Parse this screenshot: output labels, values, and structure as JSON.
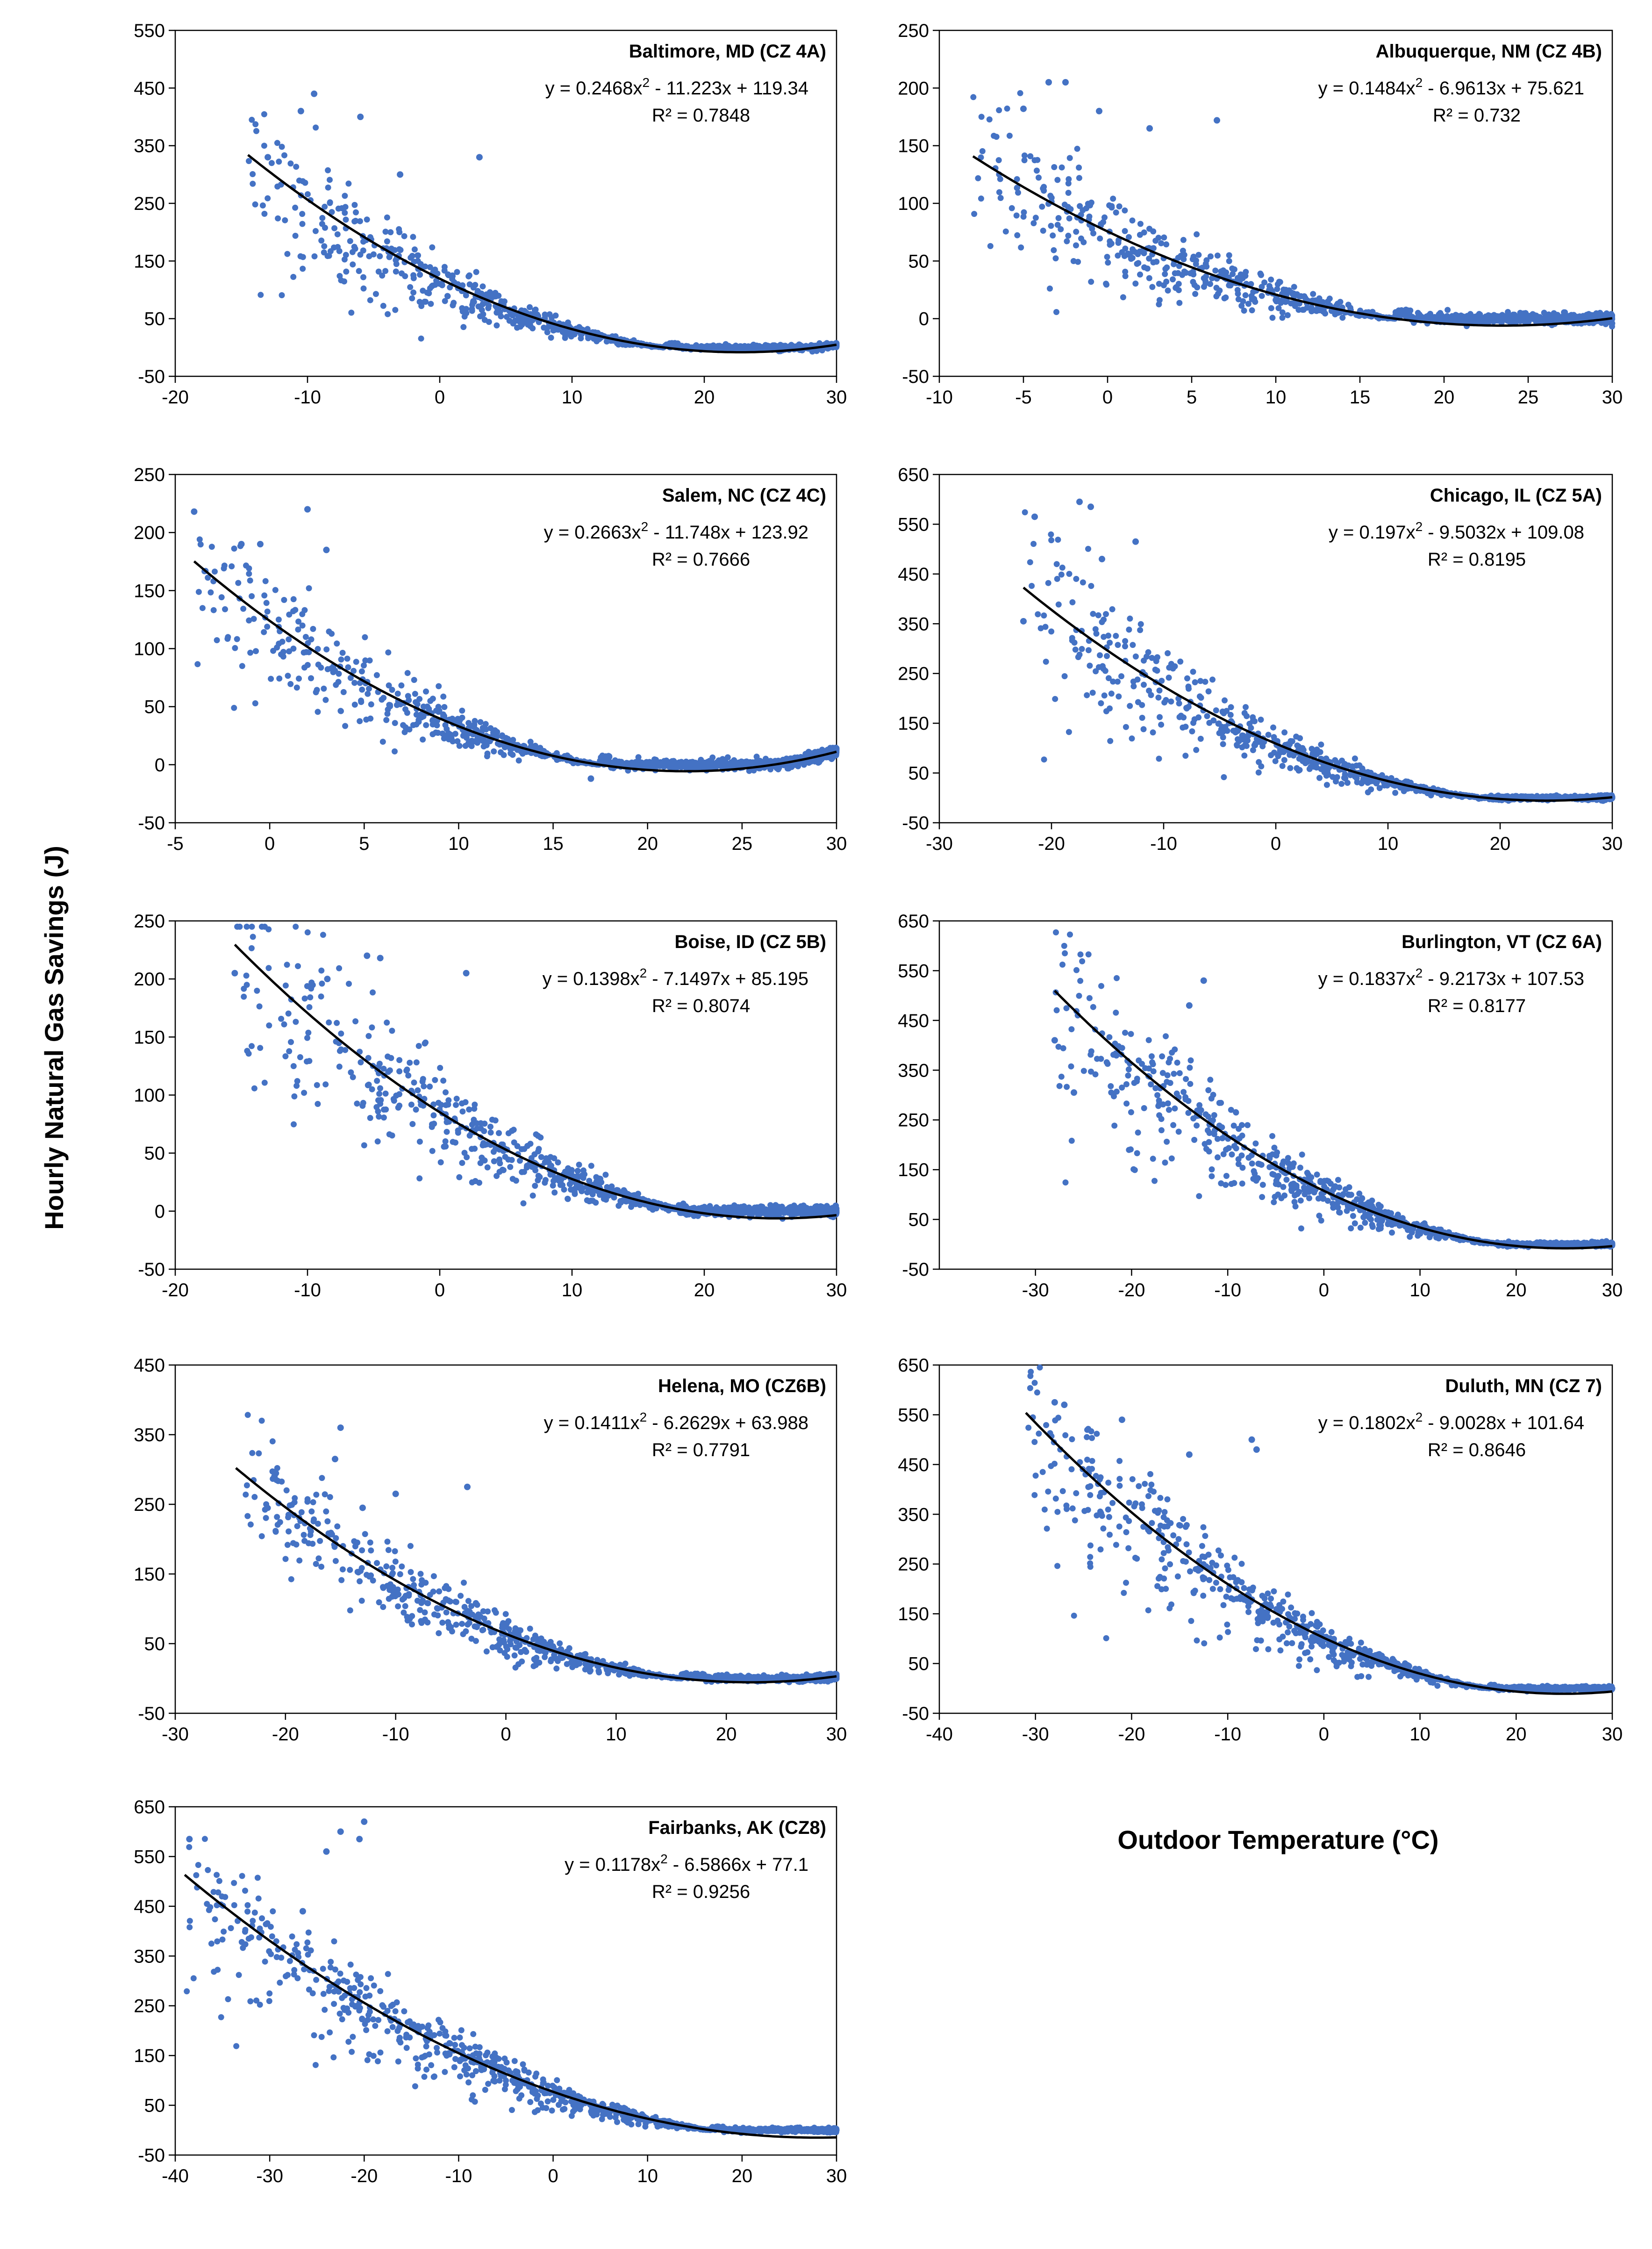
{
  "y_axis_label": "Hourly Natural Gas Savings (J)",
  "x_axis_label": "Outdoor Temperature (°C)",
  "colors": {
    "points": "#4472c4",
    "fit": "#000000",
    "axis": "#000000",
    "background": "#ffffff"
  },
  "chart_data": [
    {
      "type": "scatter",
      "title": "Baltimore, MD (CZ 4A)",
      "equation": {
        "a": "0.2468",
        "b": "11.223",
        "c": "119.34"
      },
      "fit": [
        0.2468,
        -11.223,
        119.34
      ],
      "r2_text": "R² = 0.7848",
      "xlim": [
        -20,
        30
      ],
      "xticks": [
        -20,
        -10,
        0,
        10,
        20,
        30
      ],
      "ylim": [
        -50,
        550
      ],
      "yticks": [
        -50,
        50,
        150,
        250,
        350,
        450,
        550
      ],
      "data_xrange": [
        -14.5,
        30
      ],
      "spread_cold": 0.55,
      "spread_warm": 0.25,
      "n_points": 1100,
      "outliers": [
        [
          -9.5,
          440
        ],
        [
          -10.5,
          410
        ],
        [
          -6,
          400
        ],
        [
          -13,
          330
        ],
        [
          3,
          330
        ],
        [
          -3,
          300
        ]
      ]
    },
    {
      "type": "scatter",
      "title": "Albuquerque, NM (CZ 4B)",
      "equation": {
        "a": "0.1484",
        "b": "6.9613",
        "c": "75.621"
      },
      "fit": [
        0.1484,
        -6.9613,
        75.621
      ],
      "r2_text": "R² = 0.732",
      "xlim": [
        -10,
        30
      ],
      "xticks": [
        -10,
        -5,
        0,
        5,
        10,
        15,
        20,
        25,
        30
      ],
      "ylim": [
        -50,
        250
      ],
      "yticks": [
        -50,
        0,
        50,
        100,
        150,
        200,
        250
      ],
      "data_xrange": [
        -8,
        30
      ],
      "spread_cold": 0.55,
      "spread_warm": 0.85,
      "n_points": 1100,
      "outliers": [
        [
          -3.5,
          205
        ],
        [
          -2.5,
          205
        ],
        [
          -5,
          182
        ],
        [
          -0.5,
          180
        ],
        [
          6.5,
          172
        ],
        [
          2.5,
          165
        ]
      ]
    },
    {
      "type": "scatter",
      "title": "Salem, NC (CZ 4C)",
      "equation": {
        "a": "0.2663",
        "b": "11.748",
        "c": "123.92"
      },
      "fit": [
        0.2663,
        -11.748,
        123.92
      ],
      "r2_text": "R² = 0.7666",
      "xlim": [
        -5,
        30
      ],
      "xticks": [
        -5,
        0,
        5,
        10,
        15,
        20,
        25,
        30
      ],
      "ylim": [
        -50,
        250
      ],
      "yticks": [
        -50,
        0,
        50,
        100,
        150,
        200,
        250
      ],
      "data_xrange": [
        -4,
        30
      ],
      "spread_cold": 0.45,
      "spread_warm": 0.5,
      "n_points": 1100,
      "outliers": [
        [
          -4,
          218
        ],
        [
          2,
          220
        ],
        [
          -1.5,
          190
        ],
        [
          -0.5,
          190
        ],
        [
          3,
          185
        ],
        [
          17,
          -12
        ]
      ]
    },
    {
      "type": "scatter",
      "title": "Chicago, IL (CZ 5A)",
      "equation": {
        "a": "0.197",
        "b": "9.5032",
        "c": "109.08"
      },
      "fit": [
        0.197,
        -9.5032,
        109.08
      ],
      "r2_text": "R² = 0.8195",
      "xlim": [
        -30,
        30
      ],
      "xticks": [
        -30,
        -20,
        -10,
        0,
        10,
        20,
        30
      ],
      "ylim": [
        -50,
        650
      ],
      "yticks": [
        -50,
        50,
        150,
        250,
        350,
        450,
        550,
        650
      ],
      "data_xrange": [
        -22.5,
        30
      ],
      "spread_cold": 0.5,
      "spread_warm": 0.3,
      "n_points": 1100,
      "outliers": [
        [
          -17.5,
          595
        ],
        [
          -16.5,
          585
        ],
        [
          -21.5,
          565
        ],
        [
          -12.5,
          515
        ],
        [
          -15.5,
          480
        ],
        [
          -22.5,
          355
        ]
      ]
    },
    {
      "type": "scatter",
      "title": "Boise, ID (CZ 5B)",
      "equation": {
        "a": "0.1398",
        "b": "7.1497",
        "c": "85.195"
      },
      "fit": [
        0.1398,
        -7.1497,
        85.195
      ],
      "r2_text": "R² = 0.8074",
      "xlim": [
        -20,
        30
      ],
      "xticks": [
        -20,
        -10,
        0,
        10,
        20,
        30
      ],
      "ylim": [
        -50,
        250
      ],
      "yticks": [
        -50,
        0,
        50,
        100,
        150,
        200,
        250
      ],
      "data_xrange": [
        -15.5,
        30
      ],
      "spread_cold": 0.45,
      "spread_warm": 0.55,
      "n_points": 1100,
      "outliers": [
        [
          -15.5,
          205
        ],
        [
          -5.5,
          220
        ],
        [
          -4.5,
          218
        ],
        [
          2,
          205
        ],
        [
          -8.5,
          200
        ]
      ]
    },
    {
      "type": "scatter",
      "title": "Burlington, VT (CZ 6A)",
      "equation": {
        "a": "0.1837",
        "b": "9.2173",
        "c": "107.53"
      },
      "fit": [
        0.1837,
        -9.2173,
        107.53
      ],
      "r2_text": "R² = 0.8177",
      "xlim": [
        -40,
        30
      ],
      "xticks": [
        -30,
        -20,
        -10,
        0,
        10,
        20,
        30
      ],
      "ylim": [
        -50,
        650
      ],
      "yticks": [
        -50,
        50,
        150,
        250,
        350,
        450,
        550,
        650
      ],
      "data_xrange": [
        -28,
        30
      ],
      "spread_cold": 0.45,
      "spread_warm": 0.3,
      "n_points": 1100,
      "outliers": [
        [
          -12.5,
          530
        ],
        [
          -28,
          410
        ],
        [
          -26,
          305
        ],
        [
          -14,
          480
        ]
      ]
    },
    {
      "type": "scatter",
      "title": "Helena, MO (CZ6B)",
      "equation": {
        "a": "0.1411",
        "b": "6.2629",
        "c": "63.988"
      },
      "fit": [
        0.1411,
        -6.2629,
        63.988
      ],
      "r2_text": "R² = 0.7791",
      "xlim": [
        -30,
        30
      ],
      "xticks": [
        -30,
        -20,
        -10,
        0,
        10,
        20,
        30
      ],
      "ylim": [
        -50,
        450
      ],
      "yticks": [
        -50,
        50,
        150,
        250,
        350,
        450
      ],
      "data_xrange": [
        -24.5,
        30
      ],
      "spread_cold": 0.35,
      "spread_warm": 0.45,
      "n_points": 1100,
      "outliers": [
        [
          -15,
          360
        ],
        [
          -15.5,
          315
        ],
        [
          -3.5,
          275
        ],
        [
          -10,
          265
        ],
        [
          -13,
          245
        ],
        [
          -21,
          290
        ]
      ]
    },
    {
      "type": "scatter",
      "title": "Duluth, MN (CZ 7)",
      "equation": {
        "a": "0.1802",
        "b": "9.0028",
        "c": "101.64"
      },
      "fit": [
        0.1802,
        -9.0028,
        101.64
      ],
      "r2_text": "R² = 0.8646",
      "xlim": [
        -40,
        30
      ],
      "xticks": [
        -40,
        -30,
        -20,
        -10,
        0,
        10,
        20,
        30
      ],
      "ylim": [
        -50,
        650
      ],
      "yticks": [
        -50,
        50,
        150,
        250,
        350,
        450,
        550,
        650
      ],
      "data_xrange": [
        -31,
        30
      ],
      "spread_cold": 0.35,
      "spread_warm": 0.3,
      "n_points": 1100,
      "outliers": [
        [
          -28,
          575
        ],
        [
          -27,
          570
        ],
        [
          -21,
          540
        ],
        [
          -7.5,
          500
        ],
        [
          -14,
          470
        ],
        [
          -7,
          480
        ]
      ]
    },
    {
      "type": "scatter",
      "title": "Fairbanks, AK (CZ8)",
      "equation": {
        "a": "0.1178",
        "b": "6.5866",
        "c": "77.1"
      },
      "fit": [
        0.1178,
        -6.5866,
        77.1
      ],
      "r2_text": "R² = 0.9256",
      "xlim": [
        -40,
        30
      ],
      "xticks": [
        -40,
        -30,
        -20,
        -10,
        0,
        10,
        20,
        30
      ],
      "ylim": [
        -50,
        650
      ],
      "yticks": [
        -50,
        50,
        150,
        250,
        350,
        450,
        550,
        650
      ],
      "data_xrange": [
        -39,
        30
      ],
      "spread_cold": 0.2,
      "spread_warm": 0.4,
      "n_points": 1100,
      "outliers": [
        [
          -20,
          620
        ],
        [
          -22.5,
          600
        ],
        [
          -20.5,
          585
        ],
        [
          -24,
          560
        ],
        [
          -38.5,
          585
        ],
        [
          -26.5,
          440
        ]
      ]
    }
  ]
}
